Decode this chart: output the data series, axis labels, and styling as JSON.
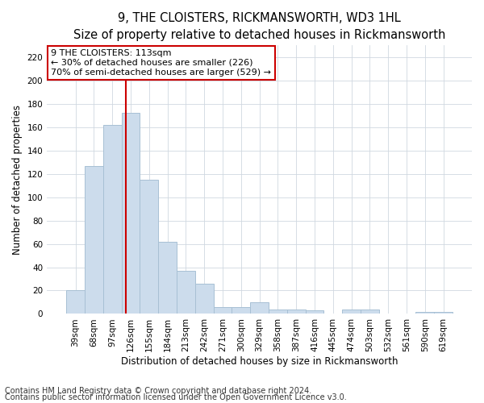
{
  "title": "9, THE CLOISTERS, RICKMANSWORTH, WD3 1HL",
  "subtitle": "Size of property relative to detached houses in Rickmansworth",
  "xlabel": "Distribution of detached houses by size in Rickmansworth",
  "ylabel": "Number of detached properties",
  "categories": [
    "39sqm",
    "68sqm",
    "97sqm",
    "126sqm",
    "155sqm",
    "184sqm",
    "213sqm",
    "242sqm",
    "271sqm",
    "300sqm",
    "329sqm",
    "358sqm",
    "387sqm",
    "416sqm",
    "445sqm",
    "474sqm",
    "503sqm",
    "532sqm",
    "561sqm",
    "590sqm",
    "619sqm"
  ],
  "values": [
    20,
    127,
    162,
    172,
    115,
    62,
    37,
    26,
    6,
    6,
    10,
    4,
    4,
    3,
    0,
    4,
    4,
    0,
    0,
    2,
    2
  ],
  "bar_color": "#ccdcec",
  "bar_edge_color": "#a8c0d4",
  "vline_x": 2.75,
  "vline_color": "#cc0000",
  "annotation_line1": "9 THE CLOISTERS: 113sqm",
  "annotation_line2": "← 30% of detached houses are smaller (226)",
  "annotation_line3": "70% of semi-detached houses are larger (529) →",
  "annotation_box_color": "#ffffff",
  "annotation_box_edge": "#cc0000",
  "ylim": [
    0,
    230
  ],
  "yticks": [
    0,
    20,
    40,
    60,
    80,
    100,
    120,
    140,
    160,
    180,
    200,
    220
  ],
  "footnote1": "Contains HM Land Registry data © Crown copyright and database right 2024.",
  "footnote2": "Contains public sector information licensed under the Open Government Licence v3.0.",
  "title_fontsize": 10.5,
  "subtitle_fontsize": 9.5,
  "label_fontsize": 8.5,
  "tick_fontsize": 7.5,
  "annotation_fontsize": 8,
  "footnote_fontsize": 7,
  "bg_color": "#ffffff",
  "plot_bg_color": "#ffffff",
  "grid_color": "#d0d8e0"
}
